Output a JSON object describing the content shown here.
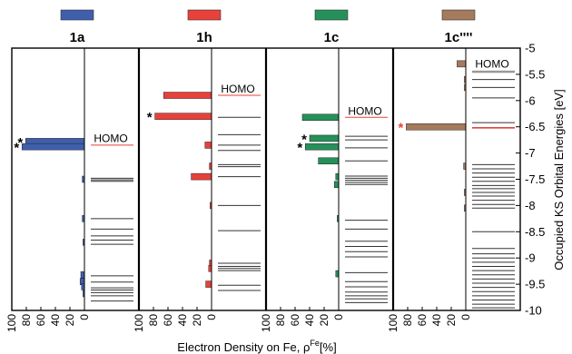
{
  "chart_data": {
    "type": "bar",
    "title": "",
    "xlabel_text": "Electron Density on Fe, ρ",
    "xlabel_sup": "Fe",
    "xlabel_tail": "[%]",
    "ylabel": "Occupied KS Orbital Energies [eV]",
    "ylim": [
      -10,
      -5
    ],
    "yticks": [
      -5,
      -5.5,
      -6,
      -6.5,
      -7,
      -7.5,
      -8,
      -8.5,
      -9,
      -9.5,
      -10
    ],
    "ytick_labels": [
      "-5",
      "-5.5",
      "-6",
      "-6.5",
      "-7",
      "-7.5",
      "-8",
      "-8.5",
      "-9",
      "-9.5",
      "-10"
    ],
    "homo_label": "HOMO",
    "highlight_marker": "*",
    "panels": [
      {
        "name": "1a",
        "color": "#3f5fac",
        "xlim": [
          0,
          100
        ],
        "xticks": [
          100,
          80,
          60,
          40,
          20,
          0
        ],
        "xtick_labels": [
          "100",
          "80",
          "60",
          "40",
          "20",
          "0"
        ],
        "homo": -6.85,
        "homo_label_y": -6.72,
        "bars": [
          {
            "e": -6.78,
            "v": 81,
            "star": true
          },
          {
            "e": -6.88,
            "v": 86,
            "star": true
          },
          {
            "e": -7.5,
            "v": 3
          },
          {
            "e": -8.25,
            "v": 3
          },
          {
            "e": -8.7,
            "v": 2
          },
          {
            "e": -9.32,
            "v": 5
          },
          {
            "e": -9.45,
            "v": 6
          },
          {
            "e": -9.55,
            "v": 4
          },
          {
            "e": -9.68,
            "v": 2
          }
        ],
        "levels": [
          -6.85,
          -7.48,
          -7.51,
          -7.54,
          -8.25,
          -8.45,
          -8.58,
          -8.66,
          -8.74,
          -9.34,
          -9.46,
          -9.57,
          -9.61,
          -9.66,
          -9.72,
          -9.82
        ]
      },
      {
        "name": "1h",
        "color": "#e8413a",
        "xlim": [
          0,
          100
        ],
        "xticks": [
          100,
          80,
          60,
          40,
          20,
          0
        ],
        "xtick_labels": [
          "100",
          "80",
          "60",
          "40",
          "20",
          "0"
        ],
        "homo": -5.9,
        "homo_label_y": -5.78,
        "bars": [
          {
            "e": -5.9,
            "v": 66
          },
          {
            "e": -6.3,
            "v": 78,
            "star": true
          },
          {
            "e": -6.85,
            "v": 9
          },
          {
            "e": -7.25,
            "v": 3
          },
          {
            "e": -7.45,
            "v": 28
          },
          {
            "e": -8.0,
            "v": 2
          },
          {
            "e": -9.1,
            "v": 3
          },
          {
            "e": -9.2,
            "v": 4
          },
          {
            "e": -9.5,
            "v": 8
          }
        ],
        "levels": [
          -5.9,
          -6.32,
          -6.65,
          -6.85,
          -6.95,
          -7.22,
          -7.26,
          -7.45,
          -8.0,
          -8.48,
          -9.1,
          -9.16,
          -9.2,
          -9.24,
          -9.52,
          -9.62
        ]
      },
      {
        "name": "1c",
        "color": "#26905a",
        "xlim": [
          0,
          100
        ],
        "xticks": [
          100,
          80,
          60,
          40,
          20,
          0
        ],
        "xtick_labels": [
          "100",
          "80",
          "60",
          "40",
          "20",
          "0"
        ],
        "homo": -6.32,
        "homo_label_y": -6.2,
        "bars": [
          {
            "e": -6.32,
            "v": 50
          },
          {
            "e": -6.72,
            "v": 40,
            "star": true
          },
          {
            "e": -6.88,
            "v": 46,
            "star": true
          },
          {
            "e": -7.15,
            "v": 28
          },
          {
            "e": -7.45,
            "v": 4
          },
          {
            "e": -7.6,
            "v": 6
          },
          {
            "e": -8.25,
            "v": 2
          },
          {
            "e": -9.3,
            "v": 4
          }
        ],
        "levels": [
          -6.32,
          -6.68,
          -6.75,
          -6.9,
          -7.15,
          -7.44,
          -7.48,
          -7.52,
          -7.56,
          -7.6,
          -8.28,
          -8.45,
          -8.68,
          -8.78,
          -8.88,
          -8.98,
          -9.28,
          -9.45,
          -9.55,
          -9.65,
          -9.72,
          -9.78,
          -9.85
        ]
      },
      {
        "name": "1c''''",
        "color": "#a57a5d",
        "xlim": [
          0,
          100
        ],
        "xticks": [
          100,
          80,
          60,
          40,
          20,
          0
        ],
        "xtick_labels": [
          "100",
          "80",
          "60",
          "40",
          "20",
          "0"
        ],
        "homo": -5.45,
        "homo_label_y": -5.3,
        "highlight_level": -6.52,
        "highlight_color": "#e8413a",
        "bars": [
          {
            "e": -5.3,
            "v": 12
          },
          {
            "e": -5.6,
            "v": 2
          },
          {
            "e": -5.75,
            "v": 2
          },
          {
            "e": -6.5,
            "v": 82,
            "star": true,
            "star_color": "#e8413a"
          },
          {
            "e": -7.25,
            "v": 3
          },
          {
            "e": -7.75,
            "v": 2
          },
          {
            "e": -8.05,
            "v": 2
          }
        ],
        "levels": [
          -5.45,
          -5.6,
          -5.75,
          -5.95,
          -6.42,
          -6.52,
          -7.22,
          -7.3,
          -7.38,
          -7.46,
          -7.54,
          -7.62,
          -7.68,
          -7.75,
          -7.82,
          -7.9,
          -7.98,
          -8.05,
          -8.5,
          -8.82,
          -8.92,
          -9.0,
          -9.08,
          -9.16,
          -9.24,
          -9.32,
          -9.4,
          -9.48,
          -9.56,
          -9.64,
          -9.72,
          -9.8,
          -9.88,
          -9.95
        ]
      }
    ]
  }
}
